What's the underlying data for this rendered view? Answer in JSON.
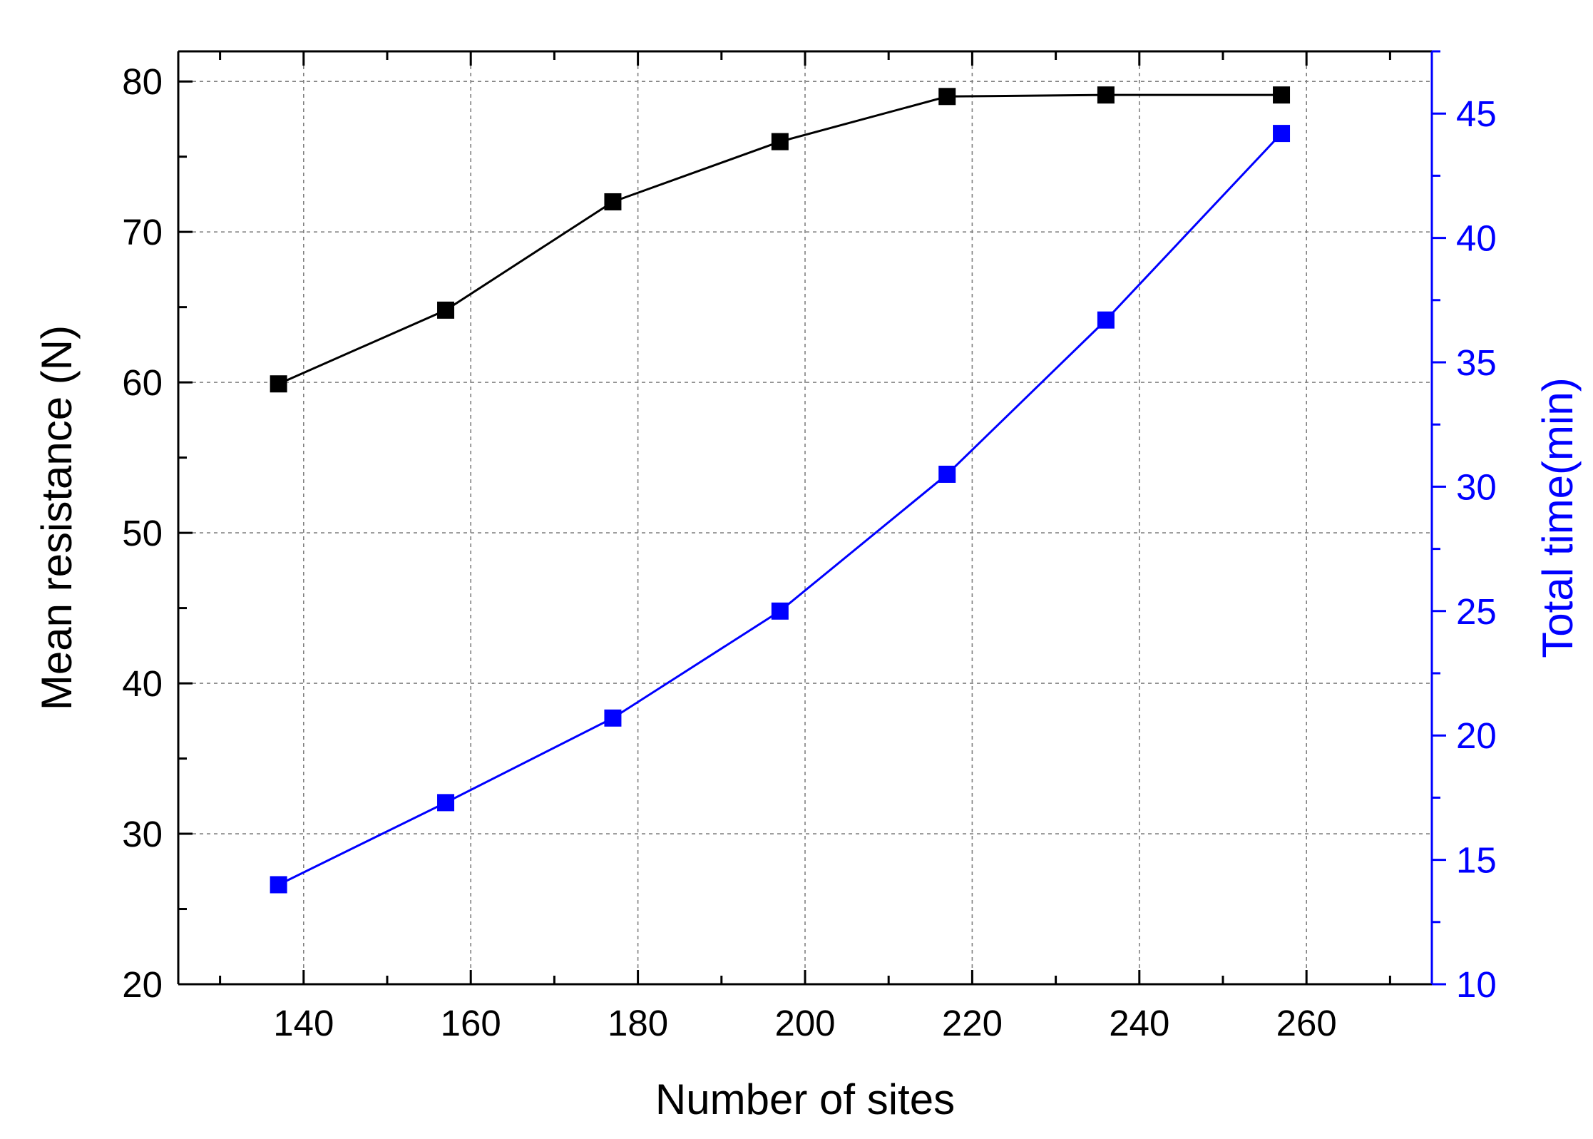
{
  "chart_data": {
    "type": "line",
    "xlabel": "Number of sites",
    "ylabel_left": "Mean resistance (N)",
    "ylabel_right": "Total time(min)",
    "xlim": [
      125,
      275
    ],
    "ylim_left": [
      20,
      82
    ],
    "ylim_right": [
      10,
      47.5
    ],
    "x_ticks": [
      140,
      160,
      180,
      200,
      220,
      240,
      260
    ],
    "y_left_ticks": [
      20,
      30,
      40,
      50,
      60,
      70,
      80
    ],
    "y_right_ticks": [
      10,
      15,
      20,
      25,
      30,
      35,
      40,
      45
    ],
    "grid": true,
    "series": [
      {
        "axis": "left",
        "color": "#000000",
        "marker": "square",
        "x": [
          137,
          157,
          177,
          197,
          217,
          236,
          257
        ],
        "values": [
          59.9,
          64.8,
          72.0,
          76.0,
          79.0,
          79.1,
          79.1
        ]
      },
      {
        "axis": "right",
        "color": "#0000ff",
        "marker": "square",
        "x": [
          137,
          157,
          177,
          197,
          217,
          236,
          257
        ],
        "values": [
          14.0,
          17.3,
          20.7,
          25.0,
          30.5,
          36.7,
          44.2
        ]
      }
    ],
    "colors": {
      "left_axis": "#000000",
      "right_axis": "#0000ff",
      "grid": "#808080"
    }
  }
}
